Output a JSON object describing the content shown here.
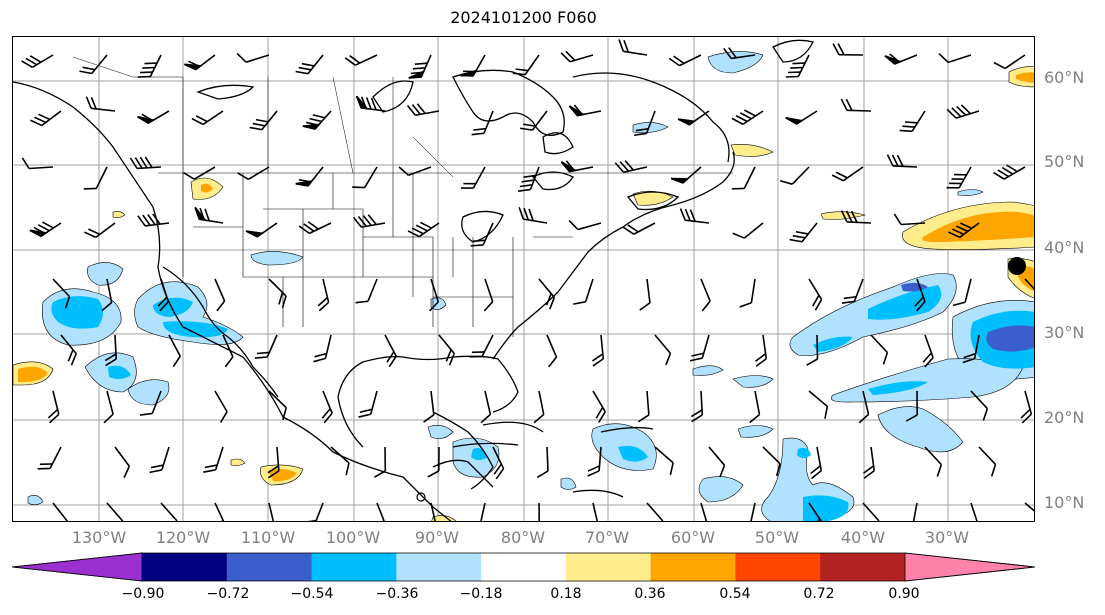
{
  "title": "2024101200 F060",
  "latitude_labels": [
    "60°N",
    "50°N",
    "40°N",
    "30°N",
    "20°N",
    "10°N"
  ],
  "longitude_labels": [
    "130°W",
    "120°W",
    "110°W",
    "100°W",
    "90°W",
    "80°W",
    "70°W",
    "60°W",
    "50°W",
    "40°W",
    "30°W"
  ],
  "colorbar": {
    "ticks": [
      "−0.90",
      "−0.72",
      "−0.54",
      "−0.36",
      "−0.18",
      "0.18",
      "0.36",
      "0.54",
      "0.72",
      "0.90"
    ],
    "colors": [
      "#9b30d0",
      "#00007f",
      "#3a5fcd",
      "#00bfff",
      "#b0e2ff",
      "#ffffff",
      "#ffec8b",
      "#ffa500",
      "#ff4500",
      "#b22222",
      "#ff82ab"
    ]
  },
  "fill_colors": {
    "light_blue": "#b0e2ff",
    "blue": "#00bfff",
    "medium_blue": "#3a5fcd",
    "yellow": "#ffec8b",
    "orange": "#ffa500"
  }
}
